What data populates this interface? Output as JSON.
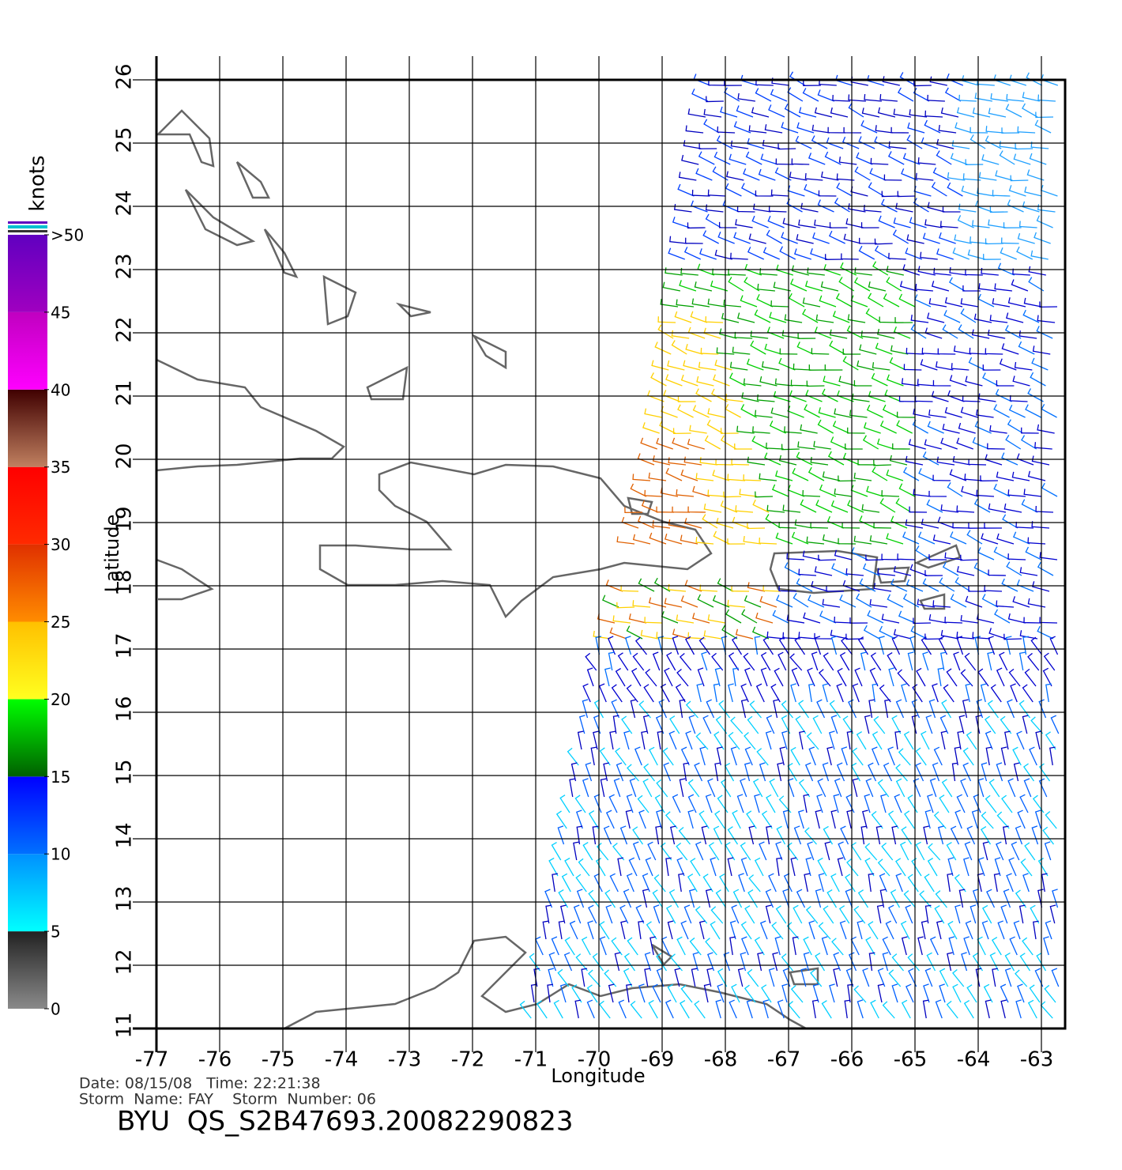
{
  "chart_data": {
    "type": "map",
    "xlabel": "Longitude",
    "ylabel": "Latitude",
    "xlim": [
      -77,
      -62.625
    ],
    "ylim": [
      11,
      26
    ],
    "xticks": [
      -77,
      -76,
      -75,
      -74,
      -73,
      -72,
      -71,
      -70,
      -69,
      -68,
      -67,
      -66,
      -65,
      -64,
      -63
    ],
    "yticks": [
      11,
      12,
      13,
      14,
      15,
      16,
      17,
      18,
      19,
      20,
      21,
      22,
      23,
      24,
      25,
      26
    ],
    "grid": true,
    "colorbar": {
      "title": "knots",
      "lim": [
        0,
        50
      ],
      "ticks": [
        0,
        5,
        10,
        15,
        20,
        25,
        30,
        35,
        40,
        45,
        {
          "value": 50,
          "label": ">50"
        }
      ],
      "band_colors": [
        [
          "#8a8a8a",
          "#222222"
        ],
        [
          "#00ffff",
          "#0090ff"
        ],
        [
          "#0070ff",
          "#0000ff"
        ],
        [
          "#006000",
          "#00ff00"
        ],
        [
          "#ffff20",
          "#ffc000"
        ],
        [
          "#ff8c00",
          "#e03000"
        ],
        [
          "#ff2a00",
          "#ff0000"
        ],
        [
          "#c08060",
          "#400000"
        ],
        [
          "#ff00ff",
          "#c000c0"
        ],
        [
          "#a000c0",
          "#6000c0"
        ]
      ]
    },
    "footer": {
      "date_line": "Date: 08/15/08   Time: 22:21:38",
      "storm_line": "Storm  Name: FAY    Storm  Number: 06",
      "file": "BYU  QS_S2B47693.20082290823"
    }
  }
}
